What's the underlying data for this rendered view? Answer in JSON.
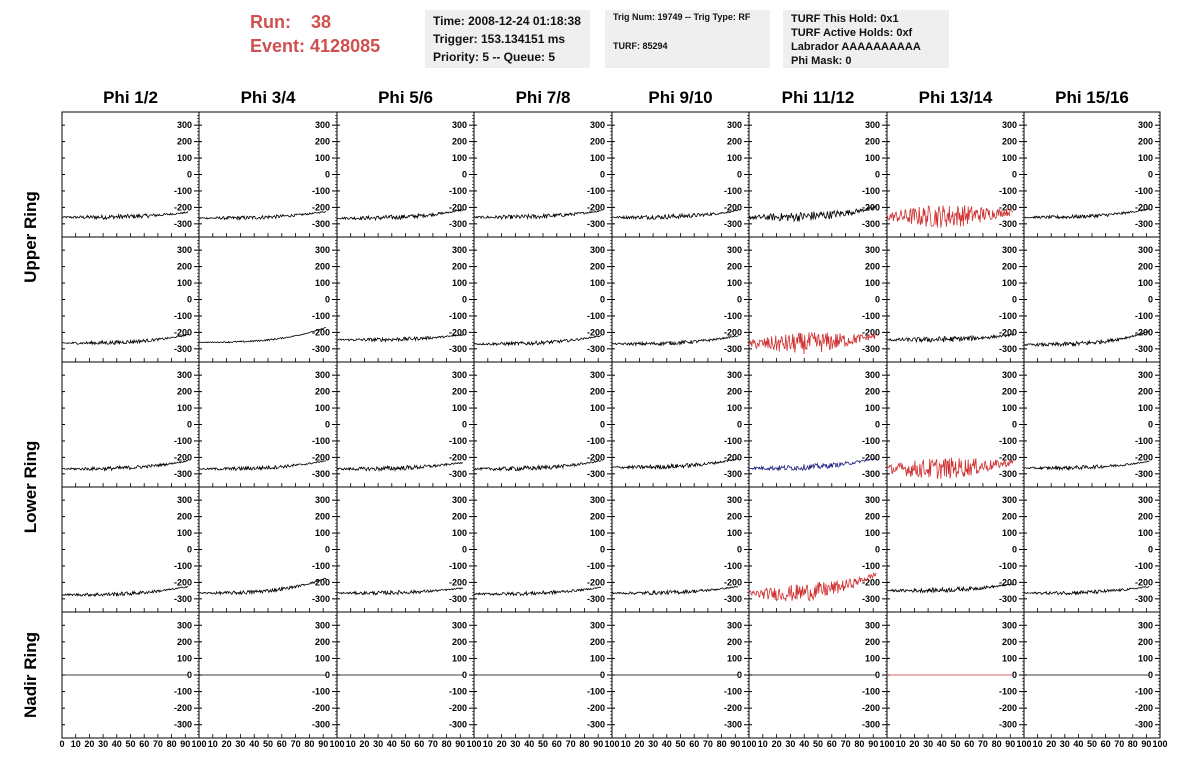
{
  "header": {
    "run_label": "Run:",
    "run_value": "38",
    "event_label": "Event:",
    "event_value": "4128085",
    "time": "Time: 2008-12-24 01:18:38",
    "trigger": "Trigger: 153.134151 ms",
    "priority": "Priority: 5 -- Queue: 5",
    "trig_num": "Trig Num: 19749 -- Trig Type: RF",
    "turf": "TURF: 85294",
    "turf_hold": "TURF This Hold: 0x1",
    "turf_active": "TURF Active Holds: 0xf",
    "labrador": "Labrador AAAAAAAAAA",
    "phi_mask": "Phi Mask: 0"
  },
  "colors": {
    "normal": "#000000",
    "red": "#d03030",
    "blue": "#202080",
    "run_text": "#d05050"
  },
  "chart_data": {
    "type": "line",
    "columns": [
      "Phi 1/2",
      "Phi 3/4",
      "Phi 5/6",
      "Phi 7/8",
      "Phi 9/10",
      "Phi 11/12",
      "Phi 13/14",
      "Phi 15/16"
    ],
    "rows": [
      "Upper Ring",
      "Lower Ring",
      "Nadir Ring"
    ],
    "ylim": [
      -380,
      380
    ],
    "yticks": [
      300,
      200,
      100,
      0,
      -100,
      -200,
      -300
    ],
    "xlim": [
      0,
      100
    ],
    "xticks": [
      0,
      10,
      20,
      30,
      40,
      50,
      60,
      70,
      80,
      90,
      100
    ],
    "subpanels": [
      [
        {
          "baseline": -260,
          "rise": 30,
          "noise": 12,
          "color": "normal"
        },
        {
          "baseline": -265,
          "rise": 40,
          "noise": 10,
          "color": "normal"
        },
        {
          "baseline": -265,
          "rise": 50,
          "noise": 12,
          "color": "normal"
        },
        {
          "baseline": -260,
          "rise": 40,
          "noise": 12,
          "color": "normal"
        },
        {
          "baseline": -260,
          "rise": 40,
          "noise": 12,
          "color": "normal"
        },
        {
          "baseline": -260,
          "rise": 60,
          "noise": 25,
          "color": "normal"
        },
        {
          "baseline": -255,
          "rise": 30,
          "noise": 60,
          "color": "red"
        },
        {
          "baseline": -260,
          "rise": 50,
          "noise": 10,
          "color": "normal"
        }
      ],
      [
        {
          "baseline": -265,
          "rise": 50,
          "noise": 10,
          "color": "normal"
        },
        {
          "baseline": -260,
          "rise": 90,
          "noise": 4,
          "color": "normal"
        },
        {
          "baseline": -245,
          "rise": 30,
          "noise": 10,
          "color": "normal"
        },
        {
          "baseline": -270,
          "rise": 50,
          "noise": 10,
          "color": "normal"
        },
        {
          "baseline": -270,
          "rise": 50,
          "noise": 10,
          "color": "normal"
        },
        {
          "baseline": -270,
          "rise": 50,
          "noise": 55,
          "color": "red"
        },
        {
          "baseline": -245,
          "rise": 30,
          "noise": 15,
          "color": "normal"
        },
        {
          "baseline": -275,
          "rise": 80,
          "noise": 12,
          "color": "normal"
        }
      ],
      [
        {
          "baseline": -270,
          "rise": 50,
          "noise": 10,
          "color": "normal"
        },
        {
          "baseline": -270,
          "rise": 50,
          "noise": 10,
          "color": "normal"
        },
        {
          "baseline": -270,
          "rise": 40,
          "noise": 12,
          "color": "normal"
        },
        {
          "baseline": -270,
          "rise": 50,
          "noise": 12,
          "color": "normal"
        },
        {
          "baseline": -260,
          "rise": 50,
          "noise": 12,
          "color": "normal"
        },
        {
          "baseline": -265,
          "rise": 60,
          "noise": 15,
          "color": "blue"
        },
        {
          "baseline": -270,
          "rise": 40,
          "noise": 55,
          "color": "red"
        },
        {
          "baseline": -265,
          "rise": 40,
          "noise": 10,
          "color": "normal"
        }
      ],
      [
        {
          "baseline": -275,
          "rise": 50,
          "noise": 10,
          "color": "normal"
        },
        {
          "baseline": -265,
          "rise": 90,
          "noise": 10,
          "color": "normal"
        },
        {
          "baseline": -265,
          "rise": 30,
          "noise": 10,
          "color": "normal"
        },
        {
          "baseline": -270,
          "rise": 40,
          "noise": 10,
          "color": "normal"
        },
        {
          "baseline": -265,
          "rise": 40,
          "noise": 10,
          "color": "normal"
        },
        {
          "baseline": -270,
          "rise": 120,
          "noise": 45,
          "color": "red"
        },
        {
          "baseline": -250,
          "rise": 40,
          "noise": 12,
          "color": "normal"
        },
        {
          "baseline": -265,
          "rise": 40,
          "noise": 10,
          "color": "normal"
        }
      ],
      [
        {
          "baseline": 0,
          "rise": 0,
          "noise": 0,
          "color": "normal"
        },
        {
          "baseline": 0,
          "rise": 0,
          "noise": 0,
          "color": "normal"
        },
        {
          "baseline": 0,
          "rise": 0,
          "noise": 0,
          "color": "normal"
        },
        {
          "baseline": 0,
          "rise": 0,
          "noise": 0,
          "color": "normal"
        },
        {
          "baseline": 0,
          "rise": 0,
          "noise": 0,
          "color": "normal"
        },
        {
          "baseline": 0,
          "rise": 0,
          "noise": 0,
          "color": "normal"
        },
        {
          "baseline": 0,
          "rise": 0,
          "noise": 0,
          "color": "red"
        },
        {
          "baseline": 0,
          "rise": 0,
          "noise": 0,
          "color": "normal"
        }
      ]
    ]
  }
}
